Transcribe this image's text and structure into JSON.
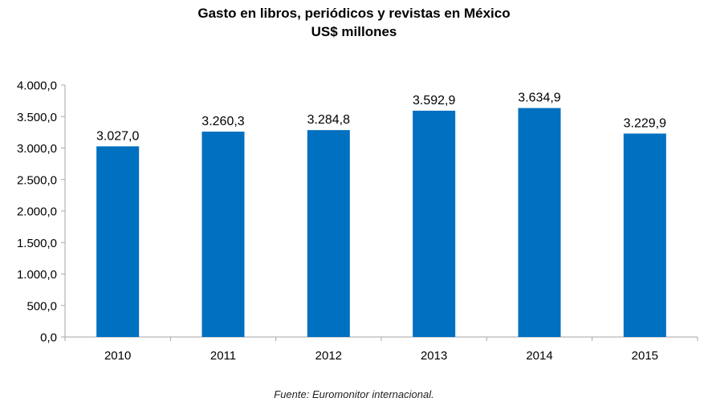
{
  "chart_data": {
    "type": "bar",
    "title": "Gasto en libros, periódicos y revistas en México",
    "subtitle": "US$ millones",
    "categories": [
      "2010",
      "2011",
      "2012",
      "2013",
      "2014",
      "2015"
    ],
    "values": [
      3027.0,
      3260.3,
      3284.8,
      3592.9,
      3634.9,
      3229.9
    ],
    "value_labels": [
      "3.027,0",
      "3.260,3",
      "3.284,8",
      "3.592,9",
      "3.634,9",
      "3.229,9"
    ],
    "y_ticks": [
      0,
      500,
      1000,
      1500,
      2000,
      2500,
      3000,
      3500,
      4000
    ],
    "y_tick_labels": [
      "0,0",
      "500,0",
      "1.000,0",
      "1.500,0",
      "2.000,0",
      "2.500,0",
      "3.000,0",
      "3.500,0",
      "4.000,0"
    ],
    "ylim": [
      0,
      4000
    ],
    "xlabel": "",
    "ylabel": "",
    "grid": false,
    "legend": "none",
    "bar_color": "#0070c0",
    "axis_color": "#a6a6a6"
  },
  "source_note": "Fuente: Euromonitor internacional."
}
